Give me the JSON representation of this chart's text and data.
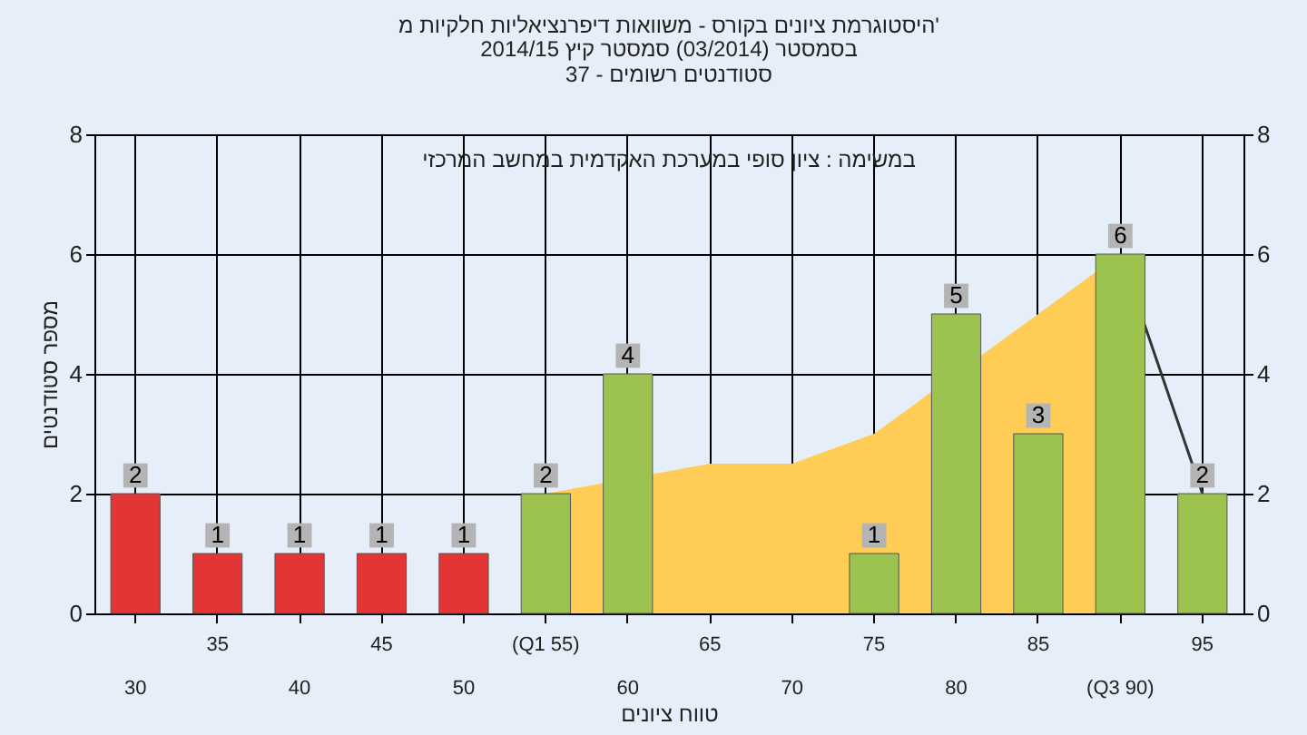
{
  "chart_data": {
    "type": "bar",
    "title": "היסטוגרמת ציונים בקורס - משוואות דיפרנציאליות חלקיות מ'",
    "subtitle": "בסמסטר (03/2014) סמסטר קיץ 2014/15\nסטודנטים רשומים - 37",
    "xlabel": "טווח ציונים",
    "ylabel": "מספר סטודנטים",
    "annotations": [
      "במשימה : ציון סופי במערכת האקדמית במחשב המרכזי"
    ],
    "categories": [
      "30",
      "35",
      "40",
      "45",
      "50",
      "(Q1 55)",
      "60",
      "65",
      "70",
      "75",
      "80",
      "85",
      "(Q3 90)",
      "95"
    ],
    "series": [
      {
        "type": "area",
        "color": "#ffcc55",
        "values": [
          null,
          null,
          null,
          null,
          null,
          2,
          null,
          2.5,
          2.5,
          3,
          null,
          5,
          6,
          null
        ]
      },
      {
        "type": "line",
        "color": "#333333",
        "values": [
          null,
          null,
          null,
          null,
          null,
          null,
          null,
          null,
          null,
          null,
          null,
          null,
          6,
          2
        ]
      },
      {
        "colors": [
          "#e33535",
          "#e33535",
          "#e33535",
          "#e33535",
          "#e33535",
          "#9cc24f",
          "#9cc24f",
          "#9cc24f",
          "#9cc24f",
          "#9cc24f",
          "#9cc24f",
          "#9cc24f",
          "#9cc24f",
          "#9cc24f"
        ],
        "values": [
          2,
          1,
          1,
          1,
          1,
          2,
          4,
          null,
          null,
          1,
          5,
          3,
          6,
          2
        ],
        "value_labels": [
          "2",
          "1",
          "1",
          "1",
          "1",
          "2",
          "4",
          null,
          null,
          "1",
          "5",
          "3",
          "6",
          "2"
        ]
      }
    ],
    "ylim": [
      0,
      8
    ],
    "yticks": [
      0,
      2,
      4,
      6,
      8
    ],
    "y2lim": [
      0,
      8
    ],
    "y2ticks": [
      0,
      2,
      4,
      6,
      8
    ],
    "grid": true
  }
}
